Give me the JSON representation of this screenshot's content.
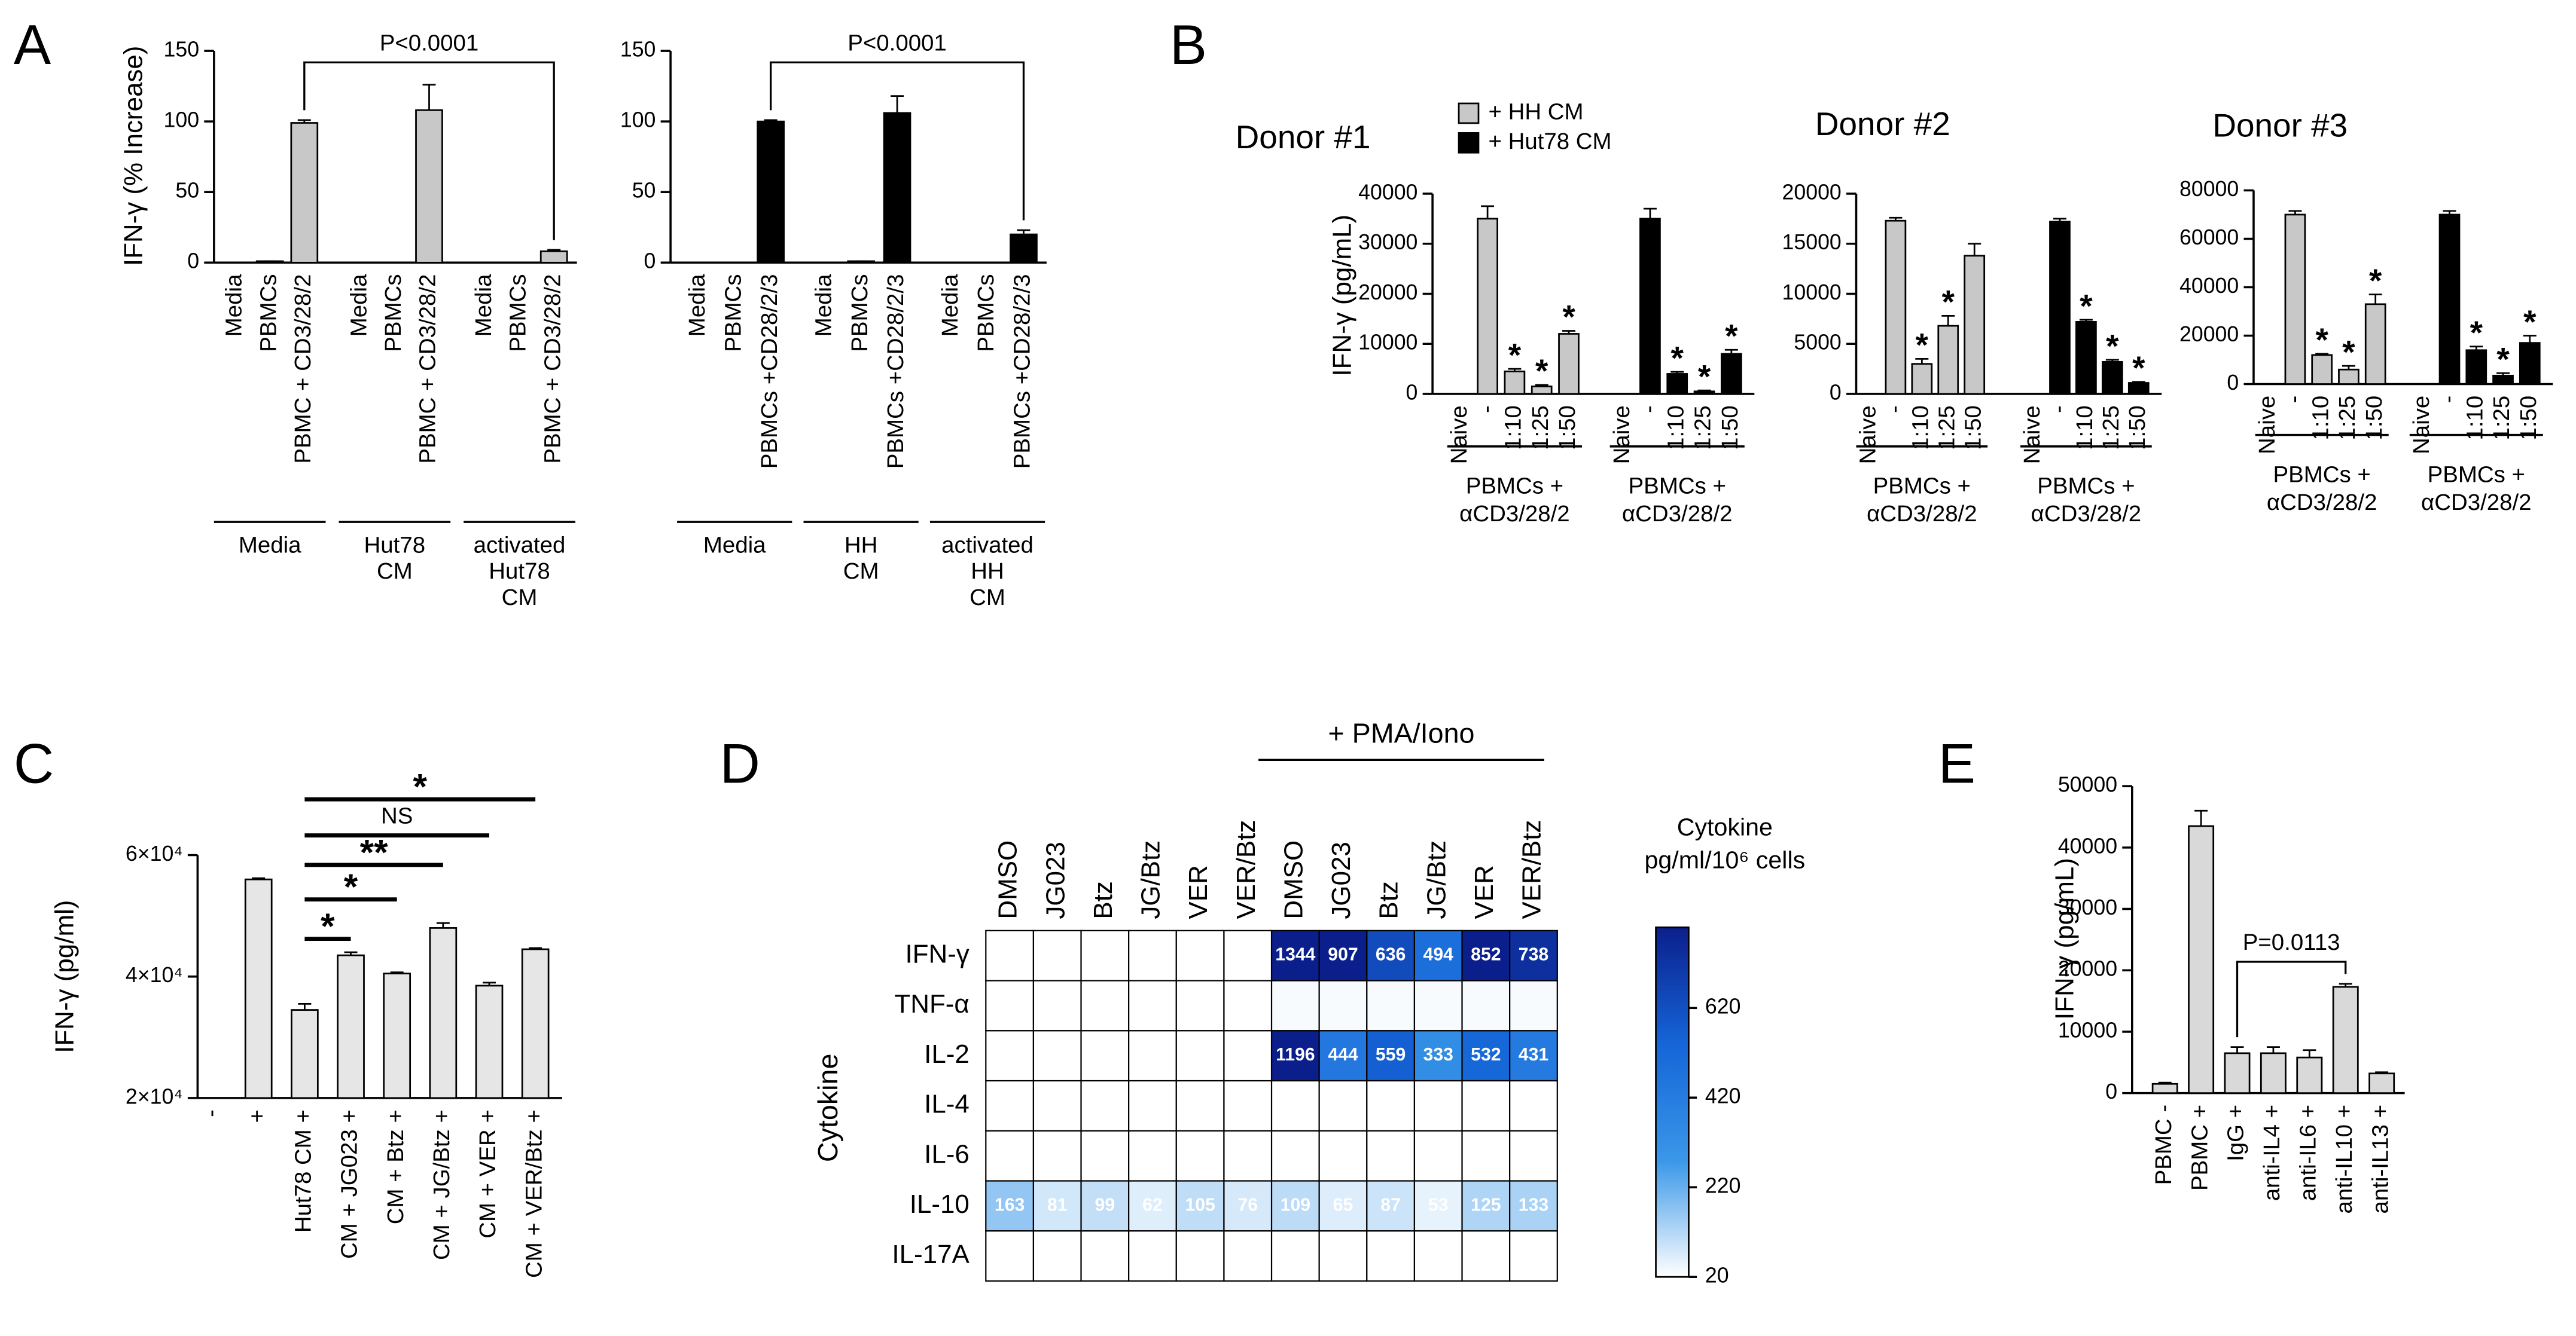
{
  "panel_labels": [
    "A",
    "B",
    "C",
    "D",
    "E"
  ],
  "chart_data": [
    {
      "type": "bar",
      "y_label": "IFN-γ (% Increase)",
      "categories": [
        "Media",
        "PBMCs",
        "PBMC + CD3/28/2",
        "Media",
        "PBMCs",
        "PBMC + CD3/28/2",
        "Media",
        "PBMCs",
        "PBMC + CD3/28/2"
      ],
      "values": [
        0,
        1,
        99,
        0,
        0,
        108,
        0,
        0,
        8
      ],
      "errors": [
        0,
        0,
        2,
        0,
        0,
        18,
        0,
        0,
        1
      ],
      "groups": [
        "Media",
        "Hut78\nCM",
        "activated\nHut78\nCM"
      ],
      "color": "#c8c8c8",
      "ylim": [
        0,
        150
      ],
      "yticks": [
        0,
        50,
        100,
        150
      ],
      "comparisons": [
        {
          "from": 2,
          "to": 8,
          "label": "P<0.0001"
        }
      ]
    },
    {
      "type": "bar",
      "categories": [
        "Media",
        "PBMCs",
        "PBMCs +CD28/2/3",
        "Media",
        "PBMCs",
        "PBMCs +CD28/2/3",
        "Media",
        "PBMCs",
        "PBMCs +CD28/2/3"
      ],
      "values": [
        0,
        0,
        100,
        0,
        1,
        106,
        0,
        0,
        20
      ],
      "errors": [
        0,
        0,
        1,
        0,
        0,
        12,
        0,
        0,
        3
      ],
      "groups": [
        "Media",
        "HH\nCM",
        "activated\nHH\nCM"
      ],
      "color": "#000000",
      "ylim": [
        0,
        150
      ],
      "yticks": [
        0,
        50,
        100,
        150
      ],
      "comparisons": [
        {
          "from": 2,
          "to": 8,
          "label": "P<0.0001"
        }
      ]
    },
    {
      "type": "bar",
      "title": "Donor #1",
      "y_label": "IFN-γ (pg/mL)",
      "legend": true,
      "categories": [
        "Naive",
        "-",
        "1:10",
        "1:25",
        "1:50"
      ],
      "series": [
        {
          "name": "+ HH CM",
          "color": "#c8c8c8",
          "label": "PBMCs +\nαCD3/28/2",
          "values": [
            0,
            35000,
            4500,
            1500,
            12000
          ],
          "errors": [
            0,
            2500,
            500,
            300,
            600
          ],
          "markers": [
            null,
            null,
            "*",
            "*",
            "*"
          ]
        },
        {
          "name": "+ Hut78 CM",
          "color": "#000000",
          "label": "PBMCs +\nαCD3/28/2",
          "values": [
            0,
            35000,
            4000,
            500,
            8000
          ],
          "errors": [
            0,
            2000,
            400,
            200,
            800
          ],
          "markers": [
            null,
            null,
            "*",
            "*",
            "*"
          ]
        }
      ],
      "ylim": [
        0,
        40000
      ],
      "yticks": [
        0,
        10000,
        20000,
        30000,
        40000
      ]
    },
    {
      "type": "bar",
      "title": "Donor #2",
      "categories": [
        "Naive",
        "-",
        "1:10",
        "1:25",
        "1:50"
      ],
      "series": [
        {
          "color": "#c8c8c8",
          "label": "PBMCs +\nαCD3/28/2",
          "values": [
            0,
            17300,
            3000,
            6800,
            13800
          ],
          "errors": [
            0,
            300,
            500,
            1000,
            1200
          ],
          "markers": [
            null,
            null,
            "*",
            "*",
            null
          ]
        },
        {
          "color": "#000000",
          "label": "PBMCs +\nαCD3/28/2",
          "values": [
            0,
            17200,
            7200,
            3200,
            1100
          ],
          "errors": [
            0,
            300,
            200,
            200,
            100
          ],
          "markers": [
            null,
            null,
            "*",
            "*",
            "*"
          ]
        }
      ],
      "ylim": [
        0,
        20000
      ],
      "yticks": [
        0,
        5000,
        10000,
        15000,
        20000
      ]
    },
    {
      "type": "bar",
      "title": "Donor #3",
      "categories": [
        "Naive",
        "-",
        "1:10",
        "1:25",
        "1:50"
      ],
      "series": [
        {
          "color": "#c8c8c8",
          "label": "PBMCs +\nαCD3/28/2",
          "values": [
            0,
            70000,
            12000,
            6000,
            33000
          ],
          "errors": [
            0,
            1500,
            500,
            1500,
            4000
          ],
          "markers": [
            null,
            null,
            "*",
            "*",
            "*"
          ]
        },
        {
          "color": "#000000",
          "label": "PBMCs +\nαCD3/28/2",
          "values": [
            0,
            70000,
            14000,
            3500,
            17000
          ],
          "errors": [
            0,
            1500,
            1500,
            1000,
            3000
          ],
          "markers": [
            null,
            null,
            "*",
            "*",
            "*"
          ]
        }
      ],
      "ylim": [
        0,
        80000
      ],
      "yticks": [
        0,
        20000,
        40000,
        60000,
        80000
      ]
    },
    {
      "type": "bar",
      "y_label": "IFN-γ (pg/ml)",
      "categories": [
        "-",
        "+",
        "Hut78 CM +",
        "CM + JG023 +",
        "CM + Btz +",
        "CM + JG/Btz +",
        "CM + VER +",
        "CM + VER/Btz +"
      ],
      "values": [
        null,
        56000,
        34500,
        43500,
        40500,
        48000,
        38500,
        44500
      ],
      "errors": [
        null,
        200,
        1000,
        500,
        200,
        800,
        500,
        200
      ],
      "color": "#e6e6e6",
      "ylim": [
        20000,
        60000
      ],
      "yticks": [
        {
          "value": 20000,
          "label": "2×10⁴"
        },
        {
          "value": 40000,
          "label": "4×10⁴"
        },
        {
          "value": 60000,
          "label": "6×10⁴"
        }
      ],
      "comparisons": [
        {
          "from": 2,
          "to": 3,
          "label": "*"
        },
        {
          "from": 2,
          "to": 4,
          "label": "*"
        },
        {
          "from": 2,
          "to": 5,
          "label": "**"
        },
        {
          "from": 2,
          "to": 6,
          "label": "NS"
        },
        {
          "from": 2,
          "to": 7,
          "label": "*"
        }
      ]
    },
    {
      "type": "heatmap",
      "y_label": "Cytokine",
      "rows": [
        "IFN-γ",
        "TNF-α",
        "IL-2",
        "IL-4",
        "IL-6",
        "IL-10",
        "IL-17A"
      ],
      "columns": [
        "DMSO",
        "JG023",
        "Btz",
        "JG/Btz",
        "VER",
        "VER/Btz",
        "DMSO",
        "JG023",
        "Btz",
        "JG/Btz",
        "VER",
        "VER/Btz"
      ],
      "column_group": {
        "label": "+ PMA/Iono",
        "from": 6,
        "to": 11
      },
      "values": [
        [
          0,
          0,
          0,
          0,
          0,
          0,
          1344,
          907,
          636,
          494,
          852,
          738
        ],
        [
          0,
          0,
          0,
          0,
          0,
          0,
          30,
          30,
          30,
          30,
          30,
          30
        ],
        [
          0,
          0,
          0,
          0,
          0,
          0,
          1196,
          444,
          559,
          333,
          532,
          431
        ],
        [
          0,
          0,
          0,
          0,
          0,
          0,
          0,
          0,
          0,
          0,
          0,
          0
        ],
        [
          0,
          0,
          0,
          0,
          0,
          0,
          0,
          0,
          0,
          0,
          0,
          0
        ],
        [
          163,
          81,
          99,
          62,
          105,
          76,
          109,
          65,
          87,
          53,
          125,
          133
        ],
        [
          0,
          0,
          0,
          0,
          0,
          0,
          0,
          0,
          0,
          0,
          0,
          0
        ]
      ],
      "value_labels": [
        [
          null,
          null,
          null,
          null,
          null,
          null,
          "1344",
          "907",
          "636",
          "494",
          "852",
          "738"
        ],
        [
          null,
          null,
          null,
          null,
          null,
          null,
          null,
          null,
          null,
          null,
          null,
          null
        ],
        [
          null,
          null,
          null,
          null,
          null,
          null,
          "1196",
          "444",
          "559",
          "333",
          "532",
          "431"
        ],
        [
          null,
          null,
          null,
          null,
          null,
          null,
          null,
          null,
          null,
          null,
          null,
          null
        ],
        [
          null,
          null,
          null,
          null,
          null,
          null,
          null,
          null,
          null,
          null,
          null,
          null
        ],
        [
          "163",
          "81",
          "99",
          "62",
          "105",
          "76",
          "109",
          "65",
          "87",
          "53",
          "125",
          "133"
        ],
        [
          null,
          null,
          null,
          null,
          null,
          null,
          null,
          null,
          null,
          null,
          null,
          null
        ]
      ],
      "colorbar": {
        "title": "Cytokine\npg/ml/10⁶ cells",
        "zlim": [
          20,
          800
        ],
        "ticks": [
          20,
          220,
          420,
          620
        ],
        "colors": [
          "#ffffff",
          "#3a97e8",
          "#1565d8",
          "#0b1f8c"
        ]
      }
    },
    {
      "type": "bar",
      "y_label": "IFN-γ (pg/mL)",
      "categories": [
        "PBMC -",
        "PBMC +",
        "IgG +",
        "anti-IL4 +",
        "anti-IL6 +",
        "anti-IL10 +",
        "anti-IL13 +"
      ],
      "values": [
        1500,
        43500,
        6500,
        6500,
        5800,
        17300,
        3200
      ],
      "errors": [
        200,
        2500,
        1000,
        1000,
        1200,
        500,
        200
      ],
      "color": "#d9d9d9",
      "ylim": [
        0,
        50000
      ],
      "yticks": [
        0,
        10000,
        20000,
        30000,
        40000,
        50000
      ],
      "comparisons": [
        {
          "from": 2,
          "to": 5,
          "label": "P=0.0113"
        }
      ]
    }
  ]
}
